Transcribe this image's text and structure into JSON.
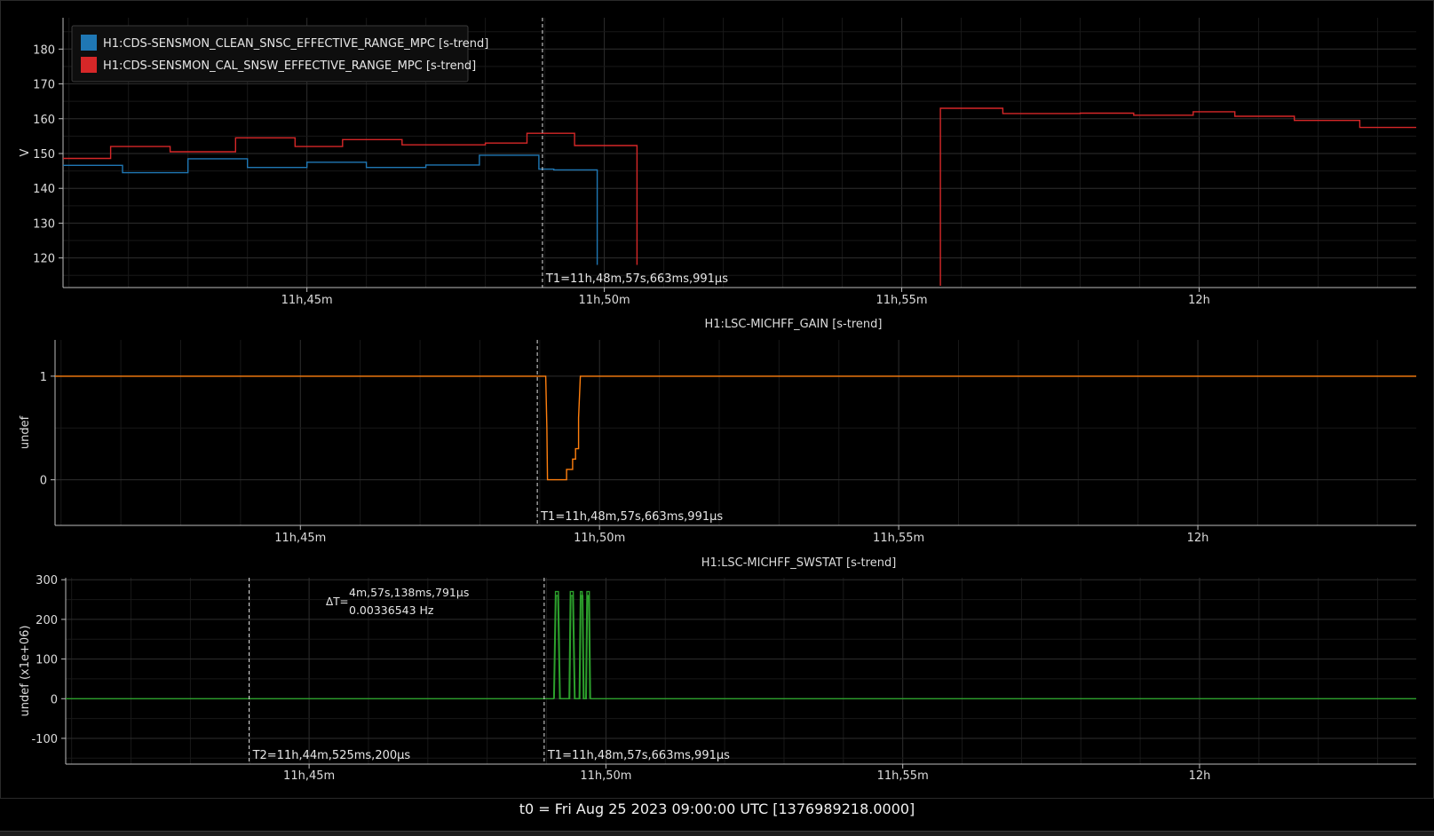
{
  "footer_text": "t0 = Fri Aug 25 2023 09:00:00 UTC [1376989218.0000]",
  "chart_data": [
    {
      "type": "line",
      "title": "",
      "ylabel": "V",
      "xlabel": "",
      "x_unit": "minutes after 11h",
      "xlim": [
        40.9,
        63.65
      ],
      "ylim": [
        111.5,
        189
      ],
      "yticks": [
        120,
        130,
        140,
        150,
        160,
        170,
        180
      ],
      "xticks": [
        45,
        50,
        55,
        60
      ],
      "xtick_labels": [
        "11h,45m",
        "11h,50m",
        "11h,55m",
        "12h"
      ],
      "legend": "top-left",
      "cursors": [
        {
          "x": 48.96,
          "label": "T1=11h,48m,57s,663ms,991µs"
        }
      ],
      "series": [
        {
          "name": "H1:CDS-SENSMON_CLEAN_SNSC_EFFECTIVE_RANGE_MPC [s-trend]",
          "color": "#1f77b4",
          "points": [
            [
              40.9,
              146.6
            ],
            [
              41.9,
              146.6
            ],
            [
              41.9,
              144.5
            ],
            [
              43.0,
              144.5
            ],
            [
              43.0,
              148.5
            ],
            [
              43.8,
              148.5
            ],
            [
              44.0,
              148.5
            ],
            [
              44.0,
              146.0
            ],
            [
              44.8,
              146.0
            ],
            [
              45.0,
              146.0
            ],
            [
              45.0,
              147.5
            ],
            [
              45.9,
              147.5
            ],
            [
              46.0,
              147.5
            ],
            [
              46.0,
              146.0
            ],
            [
              46.8,
              146.0
            ],
            [
              47.0,
              146.0
            ],
            [
              47.0,
              146.7
            ],
            [
              47.9,
              146.7
            ],
            [
              47.9,
              149.5
            ],
            [
              48.9,
              149.5
            ],
            [
              48.9,
              145.5
            ],
            [
              49.15,
              145.5
            ],
            [
              49.15,
              145.3
            ],
            [
              49.88,
              145.3
            ],
            [
              49.88,
              118.0
            ]
          ]
        },
        {
          "name": "H1:CDS-SENSMON_CAL_SNSW_EFFECTIVE_RANGE_MPC [s-trend]",
          "color": "#d62728",
          "points": [
            [
              40.9,
              148.6
            ],
            [
              41.7,
              148.6
            ],
            [
              41.7,
              152.0
            ],
            [
              42.7,
              152.0
            ],
            [
              42.7,
              150.5
            ],
            [
              43.8,
              150.5
            ],
            [
              43.8,
              154.5
            ],
            [
              44.8,
              154.5
            ],
            [
              44.8,
              152.0
            ],
            [
              45.6,
              152.0
            ],
            [
              45.6,
              154.0
            ],
            [
              46.6,
              154.0
            ],
            [
              46.6,
              152.5
            ],
            [
              48.0,
              152.5
            ],
            [
              48.0,
              153.0
            ],
            [
              48.7,
              153.0
            ],
            [
              48.7,
              155.8
            ],
            [
              49.5,
              155.8
            ],
            [
              49.5,
              152.3
            ],
            [
              50.55,
              152.3
            ],
            [
              50.55,
              118.0
            ]
          ],
          "points2": [
            [
              55.65,
              112.0
            ],
            [
              55.65,
              163.0
            ],
            [
              56.7,
              163.0
            ],
            [
              56.7,
              161.5
            ],
            [
              58.0,
              161.5
            ],
            [
              58.0,
              161.6
            ],
            [
              58.9,
              161.6
            ],
            [
              58.9,
              161.0
            ],
            [
              59.9,
              161.0
            ],
            [
              59.9,
              162.0
            ],
            [
              60.6,
              162.0
            ],
            [
              60.6,
              160.7
            ],
            [
              61.6,
              160.7
            ],
            [
              61.6,
              159.5
            ],
            [
              62.7,
              159.5
            ],
            [
              62.7,
              157.5
            ],
            [
              63.65,
              157.5
            ]
          ]
        }
      ]
    },
    {
      "type": "line",
      "title": "H1:LSC-MICHFF_GAIN [s-trend]",
      "ylabel": "undef",
      "xlabel": "",
      "x_unit": "minutes after 11h",
      "xlim": [
        40.9,
        63.65
      ],
      "ylim": [
        -0.44,
        1.35
      ],
      "yticks": [
        0,
        1
      ],
      "xticks": [
        45,
        50,
        55,
        60
      ],
      "xtick_labels": [
        "11h,45m",
        "11h,50m",
        "11h,55m",
        "12h"
      ],
      "cursors": [
        {
          "x": 48.96,
          "label": "T1=11h,48m,57s,663ms,991µs"
        }
      ],
      "series": [
        {
          "name": "",
          "color": "#ff7f0e",
          "points": [
            [
              40.9,
              1
            ],
            [
              49.1,
              1
            ],
            [
              49.12,
              0.5
            ],
            [
              49.13,
              0
            ],
            [
              49.45,
              0
            ],
            [
              49.45,
              0.1
            ],
            [
              49.55,
              0.1
            ],
            [
              49.55,
              0.2
            ],
            [
              49.6,
              0.2
            ],
            [
              49.6,
              0.3
            ],
            [
              49.65,
              0.3
            ],
            [
              49.65,
              0.6
            ],
            [
              49.68,
              1
            ],
            [
              63.65,
              1
            ]
          ]
        }
      ]
    },
    {
      "type": "line",
      "title": "H1:LSC-MICHFF_SWSTAT [s-trend]",
      "ylabel": "undef (x1e+06)",
      "xlabel": "",
      "x_unit": "minutes after 11h",
      "xlim": [
        40.9,
        63.65
      ],
      "ylim": [
        -165,
        305
      ],
      "yticks": [
        -100,
        0,
        100,
        200,
        300
      ],
      "xticks": [
        45,
        50,
        55,
        60
      ],
      "xtick_labels": [
        "11h,45m",
        "11h,50m",
        "11h,55m",
        "12h"
      ],
      "cursors": [
        {
          "x": 43.99,
          "label": "T2=11h,44m,525ms,200µs"
        },
        {
          "x": 48.96,
          "label": "T1=11h,48m,57s,663ms,991µs"
        }
      ],
      "delta": {
        "prefix": "ΔT=",
        "line1": "4m,57s,138ms,791µs",
        "line2": "0.00336543 Hz"
      },
      "series": [
        {
          "name": "",
          "color": "#2ca02c",
          "points": [
            [
              40.9,
              0
            ],
            [
              49.12,
              0
            ],
            [
              49.15,
              270
            ],
            [
              49.2,
              270
            ],
            [
              49.23,
              0
            ],
            [
              49.38,
              0
            ],
            [
              49.4,
              270
            ],
            [
              49.45,
              270
            ],
            [
              49.48,
              0
            ],
            [
              49.55,
              0
            ],
            [
              49.57,
              270
            ],
            [
              49.6,
              270
            ],
            [
              49.62,
              0
            ],
            [
              49.66,
              0
            ],
            [
              49.68,
              270
            ],
            [
              49.72,
              270
            ],
            [
              49.74,
              0
            ],
            [
              63.65,
              0
            ]
          ],
          "points2": [
            [
              49.13,
              0
            ],
            [
              49.16,
              260
            ],
            [
              49.19,
              260
            ],
            [
              49.22,
              0
            ],
            [
              49.39,
              0
            ],
            [
              49.41,
              260
            ],
            [
              49.44,
              260
            ],
            [
              49.47,
              0
            ],
            [
              49.56,
              0
            ],
            [
              49.58,
              260
            ],
            [
              49.61,
              260
            ],
            [
              49.63,
              0
            ],
            [
              49.67,
              0
            ],
            [
              49.69,
              260
            ],
            [
              49.71,
              260
            ],
            [
              49.73,
              0
            ]
          ]
        }
      ]
    }
  ]
}
